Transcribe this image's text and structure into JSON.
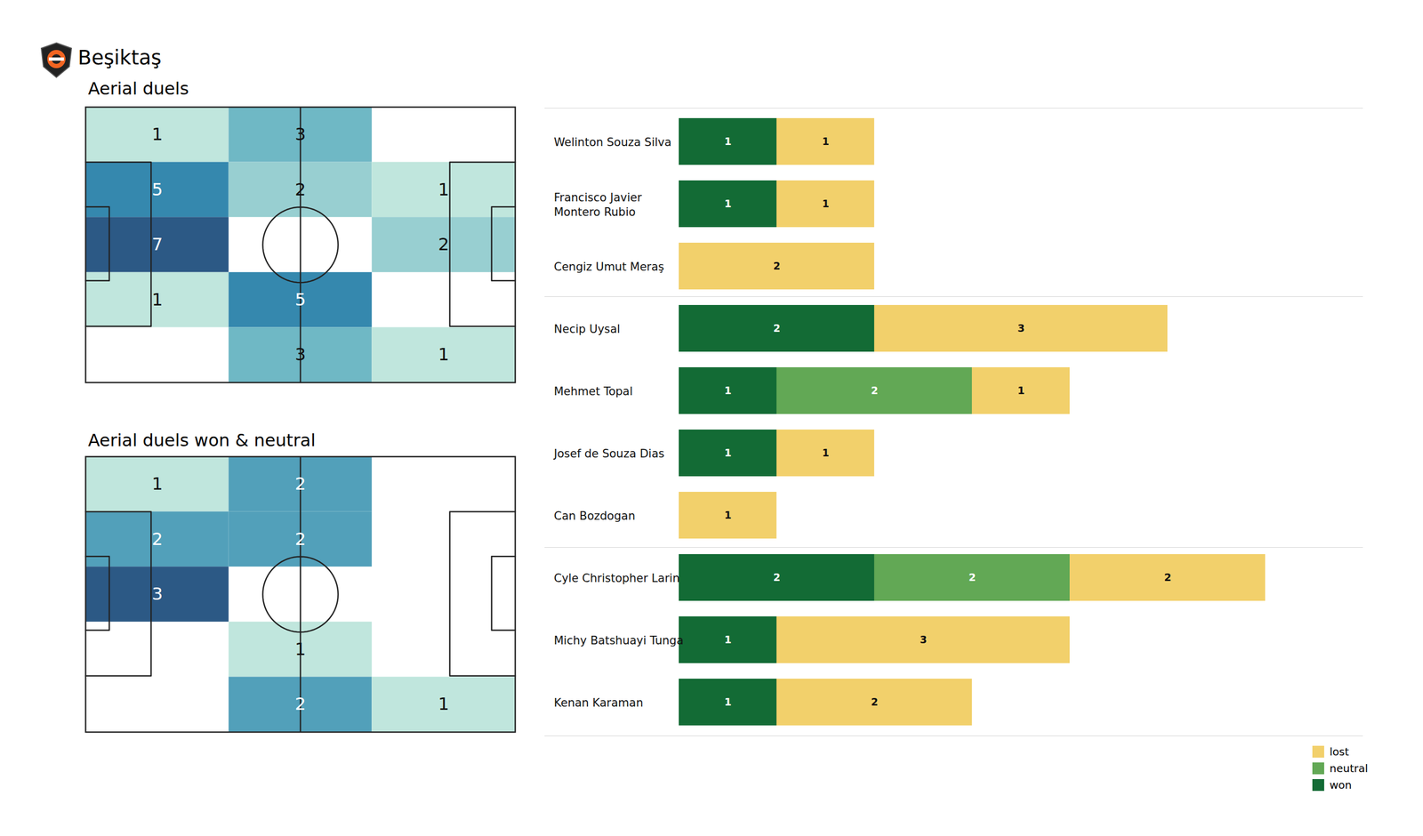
{
  "title": "Beşiktaş",
  "chart_data": [
    {
      "type": "heatmap",
      "title": "Aerial duels",
      "cells": [
        [
          1,
          3,
          0
        ],
        [
          5,
          2,
          1
        ],
        [
          7,
          0,
          2
        ],
        [
          1,
          5,
          0
        ],
        [
          0,
          3,
          1
        ]
      ]
    },
    {
      "type": "heatmap",
      "title": "Aerial duels won & neutral",
      "cells": [
        [
          1,
          2,
          0
        ],
        [
          2,
          2,
          0
        ],
        [
          3,
          0,
          0
        ],
        [
          0,
          1,
          0
        ],
        [
          0,
          2,
          1
        ]
      ]
    },
    {
      "type": "bar",
      "orientation": "horizontal",
      "stacked": true,
      "data_labels": true,
      "tick_labels": false,
      "legend": "bottom right",
      "xlim": [
        0,
        7
      ],
      "categories": [
        "Welinton Souza Silva",
        "Francisco Javier\nMontero Rubio",
        "Cengiz Umut Meraş",
        "Necip Uysal",
        "Mehmet Topal",
        "Josef de Souza Dias",
        "Can Bozdogan",
        "Cyle Christopher Larin",
        "Michy Batshuayi Tunga",
        "Kenan Karaman"
      ],
      "group_sizes": [
        3,
        4,
        3
      ],
      "series": [
        {
          "name": "won",
          "color": "#136b35",
          "values": [
            1,
            1,
            0,
            2,
            1,
            1,
            0,
            2,
            1,
            1
          ]
        },
        {
          "name": "neutral",
          "color": "#62a855",
          "values": [
            0,
            0,
            0,
            0,
            2,
            0,
            0,
            2,
            0,
            0
          ]
        },
        {
          "name": "lost",
          "color": "#f2d06b",
          "values": [
            1,
            1,
            2,
            3,
            1,
            1,
            1,
            2,
            3,
            2
          ]
        }
      ]
    }
  ]
}
